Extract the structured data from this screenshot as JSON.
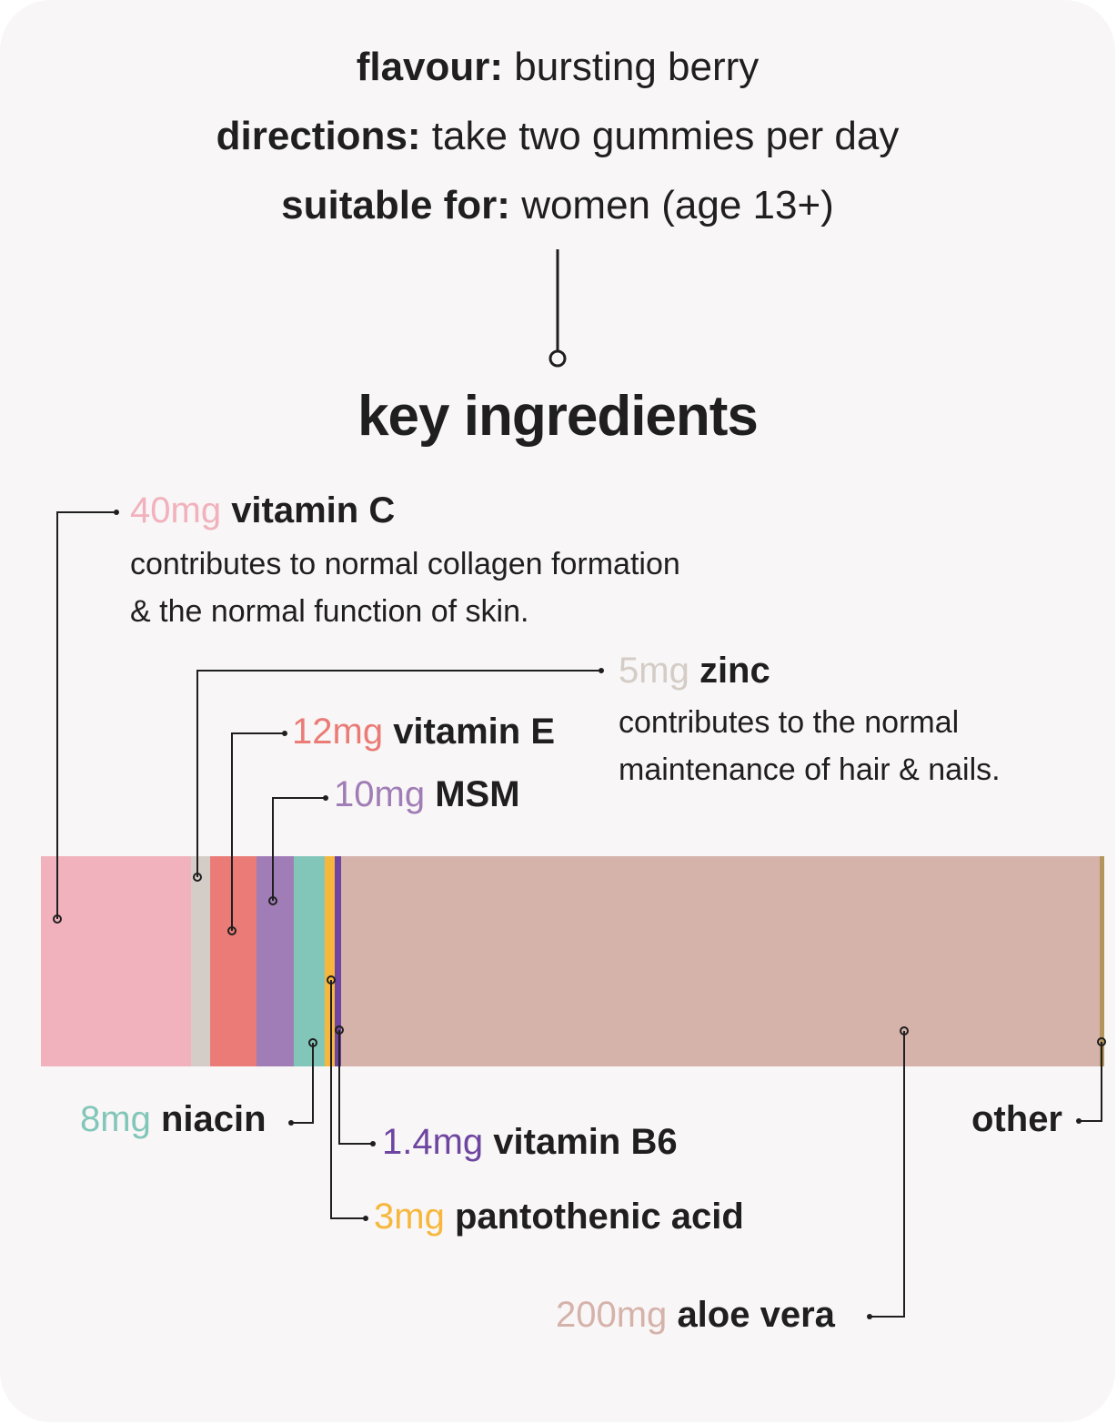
{
  "info": {
    "flavour_label": "flavour:",
    "flavour_value": "bursting berry",
    "directions_label": "directions:",
    "directions_value": "take two gummies per day",
    "suitable_label": "suitable for:",
    "suitable_value": "women (age 13+)"
  },
  "heading": "key ingredients",
  "ingredients": [
    {
      "amount": "40mg",
      "name": "vitamin C",
      "color": "#f1b1bd",
      "description_lines": [
        "contributes to normal collagen formation",
        "& the normal function of skin."
      ]
    },
    {
      "amount": "5mg",
      "name": "zinc",
      "color": "#d4ccc6",
      "description_lines": [
        "contributes to the normal",
        "maintenance of hair & nails."
      ]
    },
    {
      "amount": "12mg",
      "name": "vitamin E",
      "color": "#ea7b76"
    },
    {
      "amount": "10mg",
      "name": "MSM",
      "color": "#a07db6"
    },
    {
      "amount": "8mg",
      "name": "niacin",
      "color": "#82c6b9"
    },
    {
      "amount": "3mg",
      "name": "pantothenic acid",
      "color": "#f6b73c"
    },
    {
      "amount": "1.4mg",
      "name": "vitamin B6",
      "color": "#6e45a0"
    },
    {
      "amount": "200mg",
      "name": "aloe vera",
      "color": "#d5b2aa"
    },
    {
      "amount": "",
      "name": "other",
      "color": "#b4955b"
    }
  ],
  "text_color": "#1f1f1f",
  "line_color": "#1f1f1f"
}
